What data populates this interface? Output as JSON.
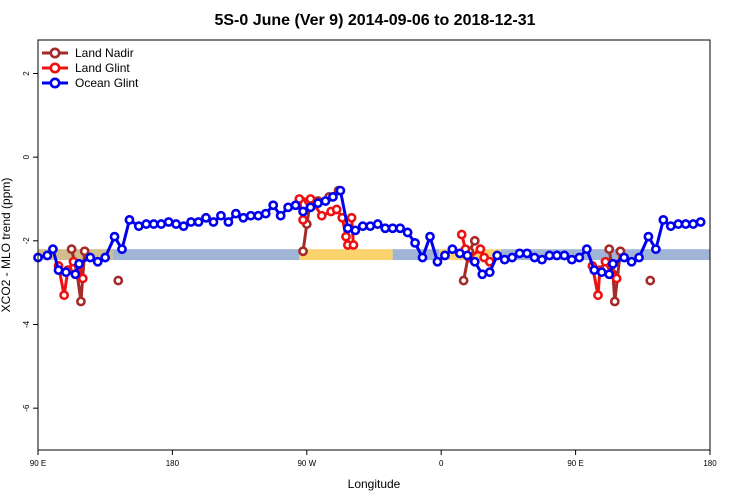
{
  "chart_data": {
    "type": "line",
    "title": "5S-0 June (Ver 9)   2014-09-06 to 2018-12-31",
    "xlabel": "Longitude",
    "ylabel": "XCO2 - MLO trend (ppm)",
    "xlim": [
      90,
      450
    ],
    "ylim": [
      -7,
      2.8
    ],
    "x_ticks": [
      {
        "value": 90,
        "label": "90 E"
      },
      {
        "value": 162,
        "label": "180"
      },
      {
        "value": 234,
        "label": "90 W"
      },
      {
        "value": 306,
        "label": "0"
      },
      {
        "value": 378,
        "label": "90 E"
      },
      {
        "value": 450,
        "label": "180"
      }
    ],
    "y_ticks": [
      {
        "value": 2,
        "label": "2"
      },
      {
        "value": 0,
        "label": "0"
      },
      {
        "value": -2,
        "label": "-2"
      },
      {
        "value": -4,
        "label": "-4"
      },
      {
        "value": -6,
        "label": "-6"
      }
    ],
    "legend_position": "top-left",
    "background_band": {
      "y": [
        -2.46,
        -2.2
      ],
      "segments": [
        {
          "x": [
            90,
            130
          ],
          "color": "#d2be8c"
        },
        {
          "x": [
            130,
            230
          ],
          "color": "#a0b4d7"
        },
        {
          "x": [
            230,
            280
          ],
          "color": "#fad26e"
        },
        {
          "x": [
            280,
            305
          ],
          "color": "#a0b4d7"
        },
        {
          "x": [
            305,
            338
          ],
          "color": "#fad26e"
        },
        {
          "x": [
            338,
            450
          ],
          "color": "#a0b4d7"
        }
      ]
    },
    "series": [
      {
        "name": "Land Nadir",
        "color": "#a52a2a",
        "segments": [
          [
            [
              108,
              -2.2
            ],
            [
              111,
              -2.8
            ],
            [
              113,
              -3.45
            ],
            [
              115,
              -2.25
            ]
          ],
          [
            [
              133,
              -2.95
            ]
          ],
          [
            [
              232,
              -2.25
            ],
            [
              234,
              -1.6
            ],
            [
              236,
              -1.05
            ],
            [
              240,
              -1.05
            ],
            [
              246,
              -0.95
            ],
            [
              251,
              -0.8
            ]
          ],
          [
            [
              318,
              -2.95
            ],
            [
              321,
              -2.25
            ],
            [
              324,
              -2.0
            ]
          ],
          [
            [
              396,
              -2.2
            ],
            [
              398,
              -2.8
            ],
            [
              399,
              -3.45
            ],
            [
              402,
              -2.25
            ]
          ],
          [
            [
              418,
              -2.95
            ]
          ]
        ]
      },
      {
        "name": "Land Glint",
        "color": "#ee1111",
        "segments": [
          [
            [
              101,
              -2.6
            ],
            [
              104,
              -3.3
            ],
            [
              106,
              -2.7
            ],
            [
              109,
              -2.5
            ],
            [
              112,
              -2.6
            ],
            [
              114,
              -2.9
            ]
          ],
          [
            [
              235,
              -1.05
            ],
            [
              232,
              -1.5
            ],
            [
              230,
              -1.0
            ],
            [
              236,
              -1.0
            ],
            [
              242,
              -1.4
            ],
            [
              247,
              -1.3
            ],
            [
              250,
              -1.25
            ],
            [
              253,
              -1.45
            ],
            [
              255,
              -1.9
            ],
            [
              256,
              -2.1
            ],
            [
              259,
              -2.1
            ],
            [
              258,
              -1.45
            ]
          ],
          [
            [
              317,
              -1.85
            ],
            [
              319,
              -2.2
            ],
            [
              321,
              -2.4
            ],
            [
              327,
              -2.2
            ],
            [
              329,
              -2.4
            ],
            [
              332,
              -2.5
            ]
          ],
          [
            [
              387,
              -2.6
            ],
            [
              390,
              -3.3
            ],
            [
              391,
              -2.7
            ],
            [
              394,
              -2.5
            ],
            [
              397,
              -2.6
            ],
            [
              400,
              -2.9
            ]
          ]
        ]
      },
      {
        "name": "Ocean Glint",
        "color": "#0000ee",
        "segments": [
          [
            [
              90,
              -2.4
            ],
            [
              95,
              -2.35
            ],
            [
              98,
              -2.2
            ],
            [
              101,
              -2.7
            ],
            [
              105,
              -2.75
            ],
            [
              110,
              -2.8
            ],
            [
              112,
              -2.55
            ],
            [
              118,
              -2.4
            ],
            [
              122,
              -2.5
            ],
            [
              126,
              -2.4
            ],
            [
              131,
              -1.9
            ],
            [
              135,
              -2.2
            ],
            [
              139,
              -1.5
            ],
            [
              144,
              -1.65
            ],
            [
              148,
              -1.6
            ],
            [
              152,
              -1.6
            ],
            [
              156,
              -1.6
            ],
            [
              160,
              -1.55
            ],
            [
              164,
              -1.6
            ],
            [
              168,
              -1.65
            ],
            [
              172,
              -1.55
            ],
            [
              176,
              -1.55
            ],
            [
              180,
              -1.45
            ],
            [
              184,
              -1.55
            ],
            [
              188,
              -1.4
            ],
            [
              192,
              -1.55
            ],
            [
              196,
              -1.35
            ],
            [
              200,
              -1.45
            ],
            [
              204,
              -1.4
            ],
            [
              208,
              -1.4
            ],
            [
              212,
              -1.35
            ],
            [
              216,
              -1.15
            ],
            [
              220,
              -1.4
            ],
            [
              224,
              -1.2
            ],
            [
              228,
              -1.15
            ],
            [
              232,
              -1.3
            ],
            [
              236,
              -1.2
            ],
            [
              240,
              -1.1
            ],
            [
              244,
              -1.05
            ],
            [
              248,
              -0.95
            ],
            [
              252,
              -0.8
            ],
            [
              256,
              -1.7
            ],
            [
              260,
              -1.75
            ],
            [
              264,
              -1.65
            ],
            [
              268,
              -1.65
            ],
            [
              272,
              -1.6
            ],
            [
              276,
              -1.7
            ],
            [
              280,
              -1.7
            ],
            [
              284,
              -1.7
            ],
            [
              288,
              -1.8
            ],
            [
              292,
              -2.05
            ],
            [
              296,
              -2.4
            ],
            [
              300,
              -1.9
            ],
            [
              304,
              -2.5
            ],
            [
              308,
              -2.35
            ],
            [
              312,
              -2.2
            ],
            [
              316,
              -2.3
            ],
            [
              320,
              -2.35
            ],
            [
              324,
              -2.5
            ],
            [
              328,
              -2.8
            ],
            [
              332,
              -2.75
            ],
            [
              336,
              -2.35
            ],
            [
              340,
              -2.45
            ],
            [
              344,
              -2.4
            ],
            [
              348,
              -2.3
            ],
            [
              352,
              -2.3
            ],
            [
              356,
              -2.4
            ],
            [
              360,
              -2.45
            ],
            [
              364,
              -2.35
            ],
            [
              368,
              -2.35
            ],
            [
              372,
              -2.35
            ],
            [
              376,
              -2.45
            ],
            [
              380,
              -2.4
            ],
            [
              384,
              -2.2
            ],
            [
              388,
              -2.7
            ],
            [
              392,
              -2.75
            ],
            [
              396,
              -2.8
            ],
            [
              398,
              -2.55
            ],
            [
              404,
              -2.4
            ],
            [
              408,
              -2.5
            ],
            [
              412,
              -2.4
            ],
            [
              417,
              -1.9
            ],
            [
              421,
              -2.2
            ],
            [
              425,
              -1.5
            ],
            [
              429,
              -1.65
            ],
            [
              433,
              -1.6
            ],
            [
              437,
              -1.6
            ],
            [
              441,
              -1.6
            ],
            [
              445,
              -1.55
            ]
          ]
        ]
      }
    ]
  }
}
